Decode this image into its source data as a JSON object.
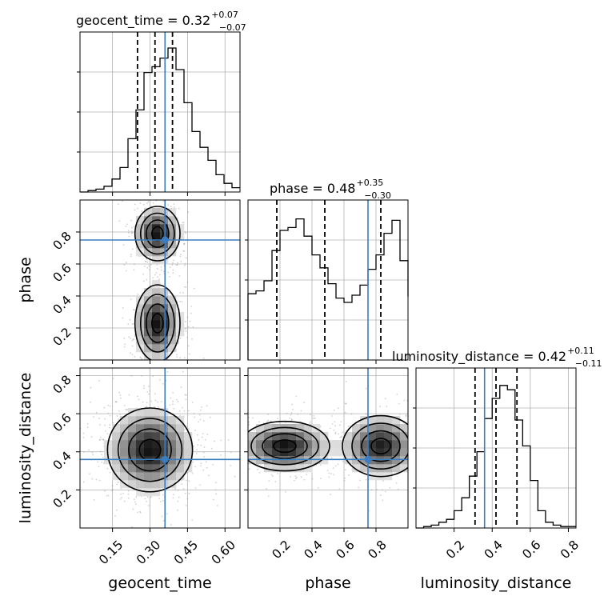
{
  "chart_data": {
    "type": "corner",
    "parameters": [
      "geocent_time",
      "phase",
      "luminosity_distance"
    ],
    "truths": {
      "geocent_time": 0.36,
      "phase": 0.75,
      "luminosity_distance": 0.36
    },
    "titles": {
      "geocent_time": {
        "label": "geocent_time",
        "value": "0.32",
        "plus": "+0.07",
        "minus": "−0.07"
      },
      "phase": {
        "label": "phase",
        "value": "0.48",
        "plus": "+0.35",
        "minus": "−0.30"
      },
      "luminosity_distance": {
        "label": "luminosity_distance",
        "value": "0.42",
        "plus": "+0.11",
        "minus": "−0.11"
      }
    },
    "ranges": {
      "geocent_time": [
        0.02,
        0.66
      ],
      "phase": [
        0.0,
        1.0
      ],
      "luminosity_distance": [
        0.0,
        0.84
      ]
    },
    "ticks": {
      "geocent_time": [
        "0.15",
        "0.30",
        "0.45",
        "0.60"
      ],
      "phase": [
        "0.2",
        "0.4",
        "0.6",
        "0.8"
      ],
      "luminosity_distance": [
        "0.2",
        "0.4",
        "0.6",
        "0.8"
      ]
    },
    "tick_values": {
      "geocent_time": [
        0.15,
        0.3,
        0.45,
        0.6
      ],
      "phase": [
        0.2,
        0.4,
        0.6,
        0.8
      ],
      "luminosity_distance": [
        0.2,
        0.4,
        0.6,
        0.8
      ]
    },
    "quantiles": {
      "geocent_time": [
        0.25,
        0.32,
        0.39
      ],
      "phase": [
        0.18,
        0.48,
        0.83
      ],
      "luminosity_distance": [
        0.31,
        0.42,
        0.53
      ]
    },
    "histograms": {
      "geocent_time": {
        "edges_start": 0.02,
        "bin_width": 0.032,
        "counts": [
          0.0,
          0.01,
          0.02,
          0.04,
          0.09,
          0.17,
          0.37,
          0.57,
          0.83,
          0.87,
          0.93,
          1.0,
          0.85,
          0.62,
          0.42,
          0.31,
          0.22,
          0.12,
          0.06,
          0.03
        ]
      },
      "phase": {
        "edges_start": 0.0,
        "bin_width": 0.05,
        "counts": [
          0.46,
          0.48,
          0.55,
          0.76,
          0.9,
          0.92,
          0.98,
          0.86,
          0.73,
          0.64,
          0.53,
          0.43,
          0.4,
          0.45,
          0.52,
          0.63,
          0.73,
          0.88,
          0.97,
          0.69,
          0.44
        ]
      },
      "luminosity_distance": {
        "edges_start": 0.0,
        "bin_width": 0.04,
        "counts": [
          0.0,
          0.01,
          0.02,
          0.04,
          0.06,
          0.12,
          0.21,
          0.36,
          0.53,
          0.76,
          0.9,
          0.99,
          0.96,
          0.75,
          0.57,
          0.33,
          0.12,
          0.04,
          0.02,
          0.01,
          0.01
        ]
      }
    },
    "joint_modes": [
      {
        "x": "geocent_time",
        "y": "phase",
        "modes": [
          {
            "cx": 0.33,
            "cy": 0.79,
            "sx": 0.045,
            "sy": 0.085,
            "w": 1.0
          },
          {
            "cx": 0.33,
            "cy": 0.23,
            "sx": 0.045,
            "sy": 0.12,
            "w": 1.0
          }
        ]
      },
      {
        "x": "geocent_time",
        "y": "luminosity_distance",
        "modes": [
          {
            "cx": 0.3,
            "cy": 0.41,
            "sx": 0.085,
            "sy": 0.11,
            "w": 1.0
          }
        ]
      },
      {
        "x": "phase",
        "y": "luminosity_distance",
        "modes": [
          {
            "cx": 0.23,
            "cy": 0.43,
            "sx": 0.14,
            "sy": 0.065,
            "w": 1.0
          },
          {
            "cx": 0.83,
            "cy": 0.43,
            "sx": 0.12,
            "sy": 0.08,
            "w": 0.95
          }
        ]
      }
    ]
  }
}
